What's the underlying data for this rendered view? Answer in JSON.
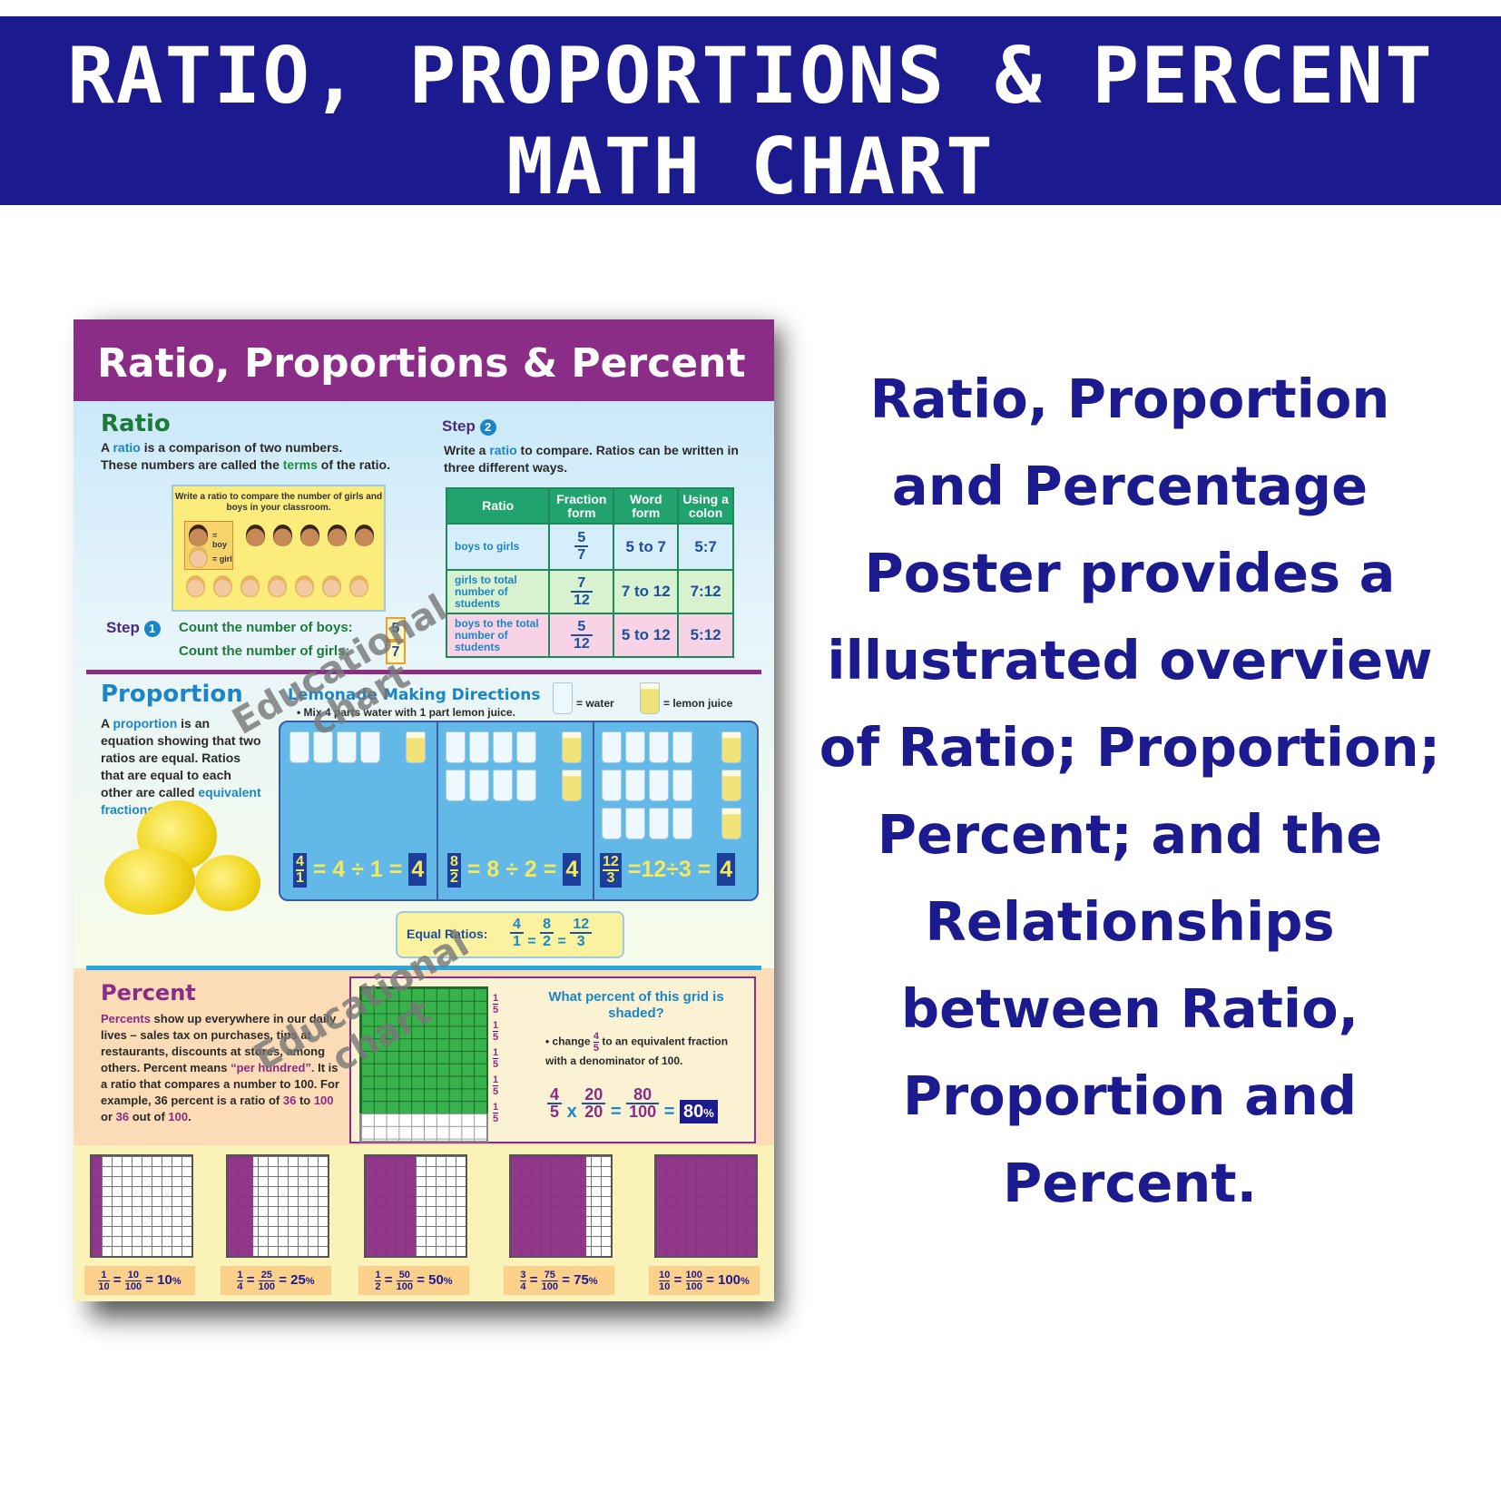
{
  "banner": {
    "line1": "RATIO, PROPORTIONS & PERCENT",
    "line2": "MATH CHART"
  },
  "description": "Ratio, Proportion and Percentage Poster provides a illustrated overview of Ratio; Proportion; Percent; and the Relationships between Ratio, Proportion and Percent.",
  "colors": {
    "banner": "#1c1a8f",
    "poster_title_bar": "#8b2c86",
    "percent_fill": "#8b2c86",
    "grid_green": "#38b24a"
  },
  "poster": {
    "title": "Ratio, Proportions & Percent",
    "ratio": {
      "heading": "Ratio",
      "intro_1a": "A ",
      "intro_1b": "ratio",
      "intro_1c": " is a comparison of two numbers.",
      "intro_2a": "These numbers are called the ",
      "intro_2b": "terms",
      "intro_2c": " of the ratio.",
      "classroom_caption": "Write a ratio to compare the number of girls and boys in your classroom.",
      "legend_boy": "= boy",
      "legend_girl": "= girl",
      "step1_label": "Step",
      "step1_num": "1",
      "step1_boys": "Count the number of boys:",
      "boys_count": "5",
      "step1_girls": "Count the number of girls:",
      "girls_count": "7",
      "step2_label": "Step",
      "step2_num": "2",
      "step2_text_a": "Write a ",
      "step2_text_b": "ratio",
      "step2_text_c": " to compare. Ratios can be written in three different ways.",
      "table": {
        "headers": [
          "Ratio",
          "Fraction form",
          "Word form",
          "Using a colon"
        ],
        "rows": [
          {
            "label": "boys to girls",
            "num": "5",
            "den": "7",
            "word": "5 to 7",
            "colon": "5:7"
          },
          {
            "label": "girls to total number of students",
            "num": "7",
            "den": "12",
            "word": "7 to 12",
            "colon": "7:12"
          },
          {
            "label": "boys to the total number of students",
            "num": "5",
            "den": "12",
            "word": "5 to 12",
            "colon": "5:12"
          }
        ]
      }
    },
    "proportion": {
      "heading": "Proportion",
      "text_a": "A ",
      "text_b": "proportion",
      "text_c": " is an equation showing that two ratios are equal. Ratios that are equal to each other are called ",
      "text_d": "equivalent fractions",
      "text_e": ".",
      "lemonade_title": "Lemonade Making Directions",
      "lemonade_bullet": "• Mix 4 parts water with 1 part lemon juice.",
      "legend_water": "= water",
      "legend_lemon": "= lemon juice",
      "equations": [
        {
          "num": "4",
          "den": "1",
          "expr": "= 4 ÷ 1 =",
          "result": "4"
        },
        {
          "num": "8",
          "den": "2",
          "expr": "= 8 ÷ 2 =",
          "result": "4"
        },
        {
          "num": "12",
          "den": "3",
          "expr": "=12÷3 =",
          "result": "4"
        }
      ],
      "equal_ratios_label": "Equal Ratios:",
      "equal_ratios": [
        {
          "num": "4",
          "den": "1"
        },
        {
          "num": "8",
          "den": "2"
        },
        {
          "num": "12",
          "den": "3"
        }
      ],
      "eq_sign": "="
    },
    "percent": {
      "heading": "Percent",
      "text_a": "Percents",
      "text_b": " show up everywhere in our daily lives – sales tax on purchases, tips at restaurants, discounts at stores, among others. Percent means ",
      "text_c": "“per hundred”.",
      "text_d": " It is a ratio that compares a number to 100. For example, 36 percent is a ratio of ",
      "n36": "36",
      "to": " to ",
      "n100": "100",
      "or": " or ",
      "n36b": "36",
      "outof": " out of ",
      "n100b": "100",
      "dot": ".",
      "fifth_num": "1",
      "fifth_den": "5",
      "question": "What percent of this grid is shaded?",
      "change_a": "• change ",
      "change_num": "4",
      "change_den": "5",
      "change_b": " to an equivalent fraction with a denominator of 100.",
      "calc": {
        "a_num": "4",
        "a_den": "5",
        "x": "x",
        "b_num": "20",
        "b_den": "20",
        "eq": "=",
        "c_num": "80",
        "c_den": "100",
        "eq2": "=",
        "result": "80",
        "pct": "%"
      },
      "shaded_fraction": 0.8
    },
    "hundred_grids": [
      {
        "fnum": "1",
        "fden": "10",
        "hnum": "10",
        "hden": "100",
        "pct": "10",
        "shaded": 0.1
      },
      {
        "fnum": "1",
        "fden": "4",
        "hnum": "25",
        "hden": "100",
        "pct": "25",
        "shaded": 0.25
      },
      {
        "fnum": "1",
        "fden": "2",
        "hnum": "50",
        "hden": "100",
        "pct": "50",
        "shaded": 0.5
      },
      {
        "fnum": "3",
        "fden": "4",
        "hnum": "75",
        "hden": "100",
        "pct": "75",
        "shaded": 0.75
      },
      {
        "fnum": "10",
        "fden": "10",
        "hnum": "100",
        "hden": "100",
        "pct": "100",
        "shaded": 1.0
      }
    ],
    "pct_sign": "%",
    "eq": "=",
    "watermark_1": "Educational",
    "watermark_2": "chart"
  }
}
